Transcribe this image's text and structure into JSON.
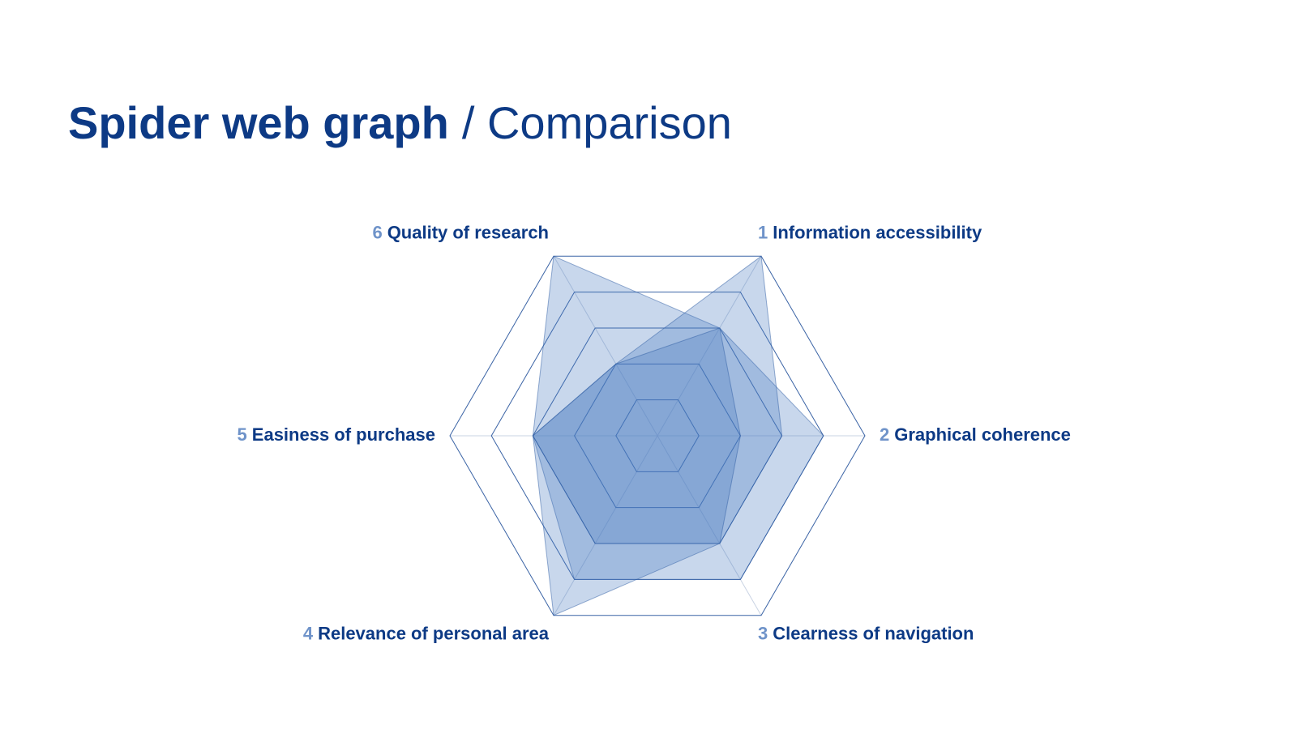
{
  "chart_data": {
    "type": "radar",
    "title": "Spider web graph",
    "subtitle": "/ Comparison",
    "category_numbers": [
      1,
      2,
      3,
      4,
      5,
      6
    ],
    "categories": [
      "Information accessibility",
      "Graphical coherence",
      "Clearness of navigation",
      "Relevance of personal area",
      "Easiness of purchase",
      "Quality of research"
    ],
    "series": [
      {
        "color": "#4a7cc0",
        "values": [
          3,
          4,
          4,
          4,
          3,
          5
        ]
      },
      {
        "color": "#4a7cc0",
        "values": [
          5,
          3,
          3,
          5,
          3,
          2
        ]
      },
      {
        "color": "#4a7cc0",
        "values": [
          3,
          2,
          3,
          3,
          3,
          2
        ]
      }
    ],
    "rlim": [
      0,
      5
    ],
    "rticks": [
      1,
      2,
      3,
      4,
      5
    ],
    "grid": true
  }
}
